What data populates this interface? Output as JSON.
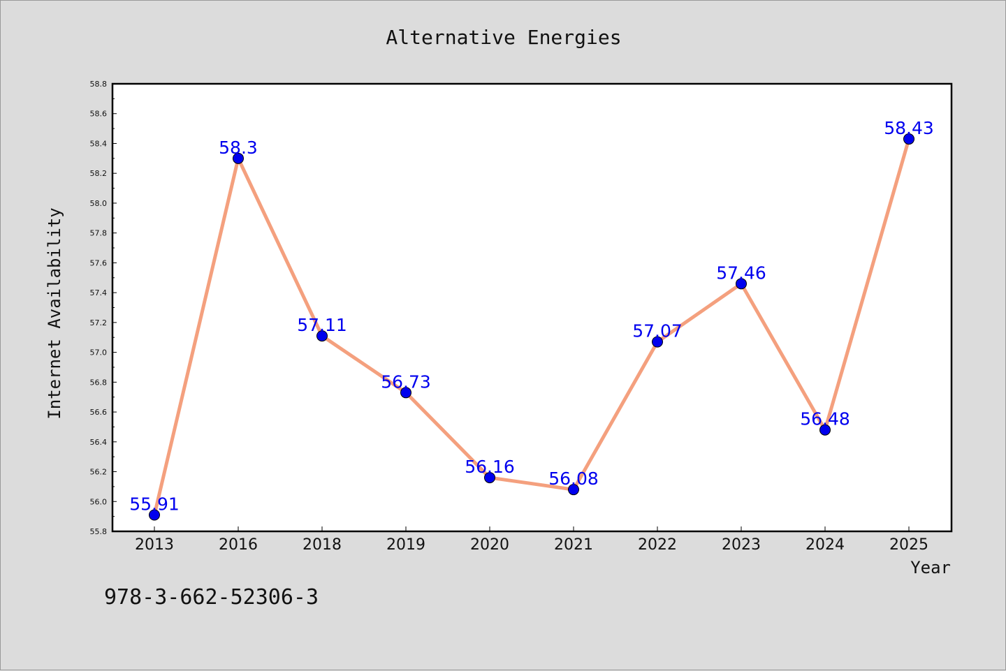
{
  "chart_data": {
    "type": "line",
    "title": "Alternative Energies",
    "xlabel": "Year",
    "ylabel": "Internet Availability",
    "categories": [
      "2013",
      "2016",
      "2018",
      "2019",
      "2020",
      "2021",
      "2022",
      "2023",
      "2024",
      "2025"
    ],
    "series": [
      {
        "values": [
          55.91,
          58.3,
          57.11,
          56.73,
          56.16,
          56.08,
          57.07,
          57.46,
          56.48,
          58.43
        ],
        "labels": [
          "55.91",
          "58.3",
          "57.11",
          "56.73",
          "56.16",
          "56.08",
          "57.07",
          "57.46",
          "56.48",
          "58.43"
        ]
      }
    ],
    "ylim": [
      55.8,
      58.8
    ],
    "yticks": [
      "55.8",
      "56.0",
      "56.2",
      "56.4",
      "56.6",
      "56.8",
      "57.0",
      "57.2",
      "57.4",
      "57.6",
      "57.8",
      "58.0",
      "58.2",
      "58.4",
      "58.6",
      "58.8"
    ],
    "grid": false,
    "colors": {
      "line": "#f4a07e",
      "marker": "#0000ee",
      "label": "#0000ee",
      "background": "#dcdcdc",
      "plot_background": "#ffffff"
    }
  },
  "footnote": "978-3-662-52306-3"
}
